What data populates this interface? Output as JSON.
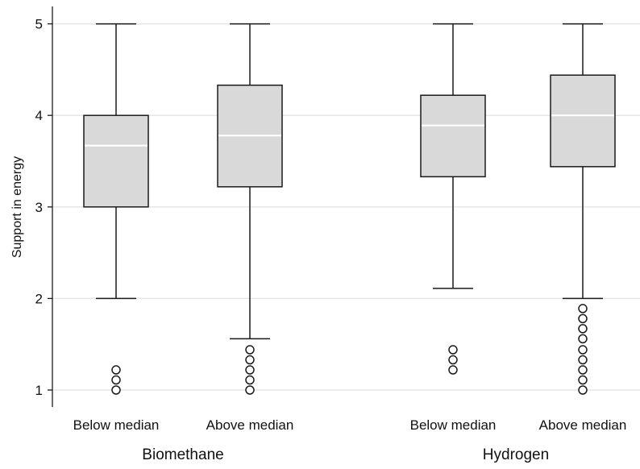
{
  "chart_data": {
    "type": "box",
    "ylabel": "Support in energy",
    "ylim": [
      1,
      5
    ],
    "yticks": [
      "1",
      "2",
      "3",
      "4",
      "5"
    ],
    "grid": true,
    "groups": [
      {
        "label": "Biomethane",
        "boxes": [
          {
            "label": "Below median",
            "min": 2.0,
            "q1": 3.0,
            "median": 3.67,
            "q3": 4.0,
            "max": 5.0,
            "outliers": [
              1.0,
              1.11,
              1.22
            ]
          },
          {
            "label": "Above median",
            "min": 1.56,
            "q1": 3.22,
            "median": 3.78,
            "q3": 4.33,
            "max": 5.0,
            "outliers": [
              1.0,
              1.11,
              1.22,
              1.33,
              1.44
            ]
          }
        ]
      },
      {
        "label": "Hydrogen",
        "boxes": [
          {
            "label": "Below median",
            "min": 2.11,
            "q1": 3.33,
            "median": 3.89,
            "q3": 4.22,
            "max": 5.0,
            "outliers": [
              1.22,
              1.33,
              1.44
            ]
          },
          {
            "label": "Above median",
            "min": 2.0,
            "q1": 3.44,
            "median": 4.0,
            "q3": 4.44,
            "max": 5.0,
            "outliers": [
              1.0,
              1.11,
              1.22,
              1.33,
              1.44,
              1.56,
              1.67,
              1.78,
              1.89
            ]
          }
        ]
      }
    ],
    "colors": {
      "box_fill": "#d9d9d9",
      "median": "#ffffff",
      "line": "#1a1a1a",
      "grid": "#e6e6e6"
    }
  }
}
